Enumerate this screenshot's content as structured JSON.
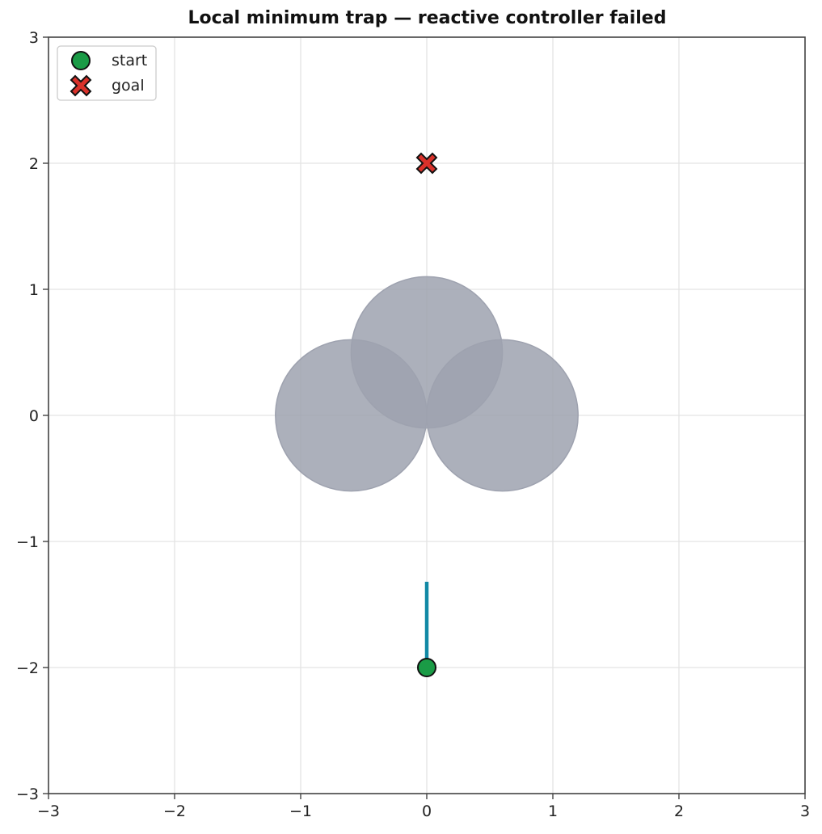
{
  "chart_data": {
    "type": "scatter",
    "title": "Local minimum trap — reactive controller failed",
    "xlim": [
      -3,
      3
    ],
    "ylim": [
      -3,
      3
    ],
    "x_ticks": [
      -3,
      -2,
      -1,
      0,
      1,
      2,
      3
    ],
    "y_ticks": [
      -3,
      -2,
      -1,
      0,
      1,
      2,
      3
    ],
    "x_tick_labels": [
      "−3",
      "−2",
      "−1",
      "0",
      "1",
      "2",
      "3"
    ],
    "y_tick_labels": [
      "−3",
      "−2",
      "−1",
      "0",
      "1",
      "2",
      "3"
    ],
    "grid": true,
    "legend": {
      "placement": "top-left",
      "entries": [
        "start",
        "goal"
      ]
    },
    "obstacles": [
      {
        "cx": -0.6,
        "cy": 0.0,
        "r": 0.6
      },
      {
        "cx": 0.0,
        "cy": 0.5,
        "r": 0.6
      },
      {
        "cx": 0.6,
        "cy": 0.0,
        "r": 0.6
      }
    ],
    "trajectory": {
      "x": [
        0,
        0
      ],
      "y": [
        -2.0,
        -1.32
      ]
    },
    "series": [
      {
        "name": "start",
        "points": [
          [
            0,
            -2
          ]
        ],
        "marker": "circle"
      },
      {
        "name": "goal",
        "points": [
          [
            0,
            2
          ]
        ],
        "marker": "x"
      }
    ]
  },
  "colors": {
    "obstacle": "#9ea2af",
    "trajectory": "#1189a5",
    "start": "#1a9b46",
    "goal": "#d9312a",
    "grid": "#e3e3e3",
    "axis": "#444444"
  }
}
